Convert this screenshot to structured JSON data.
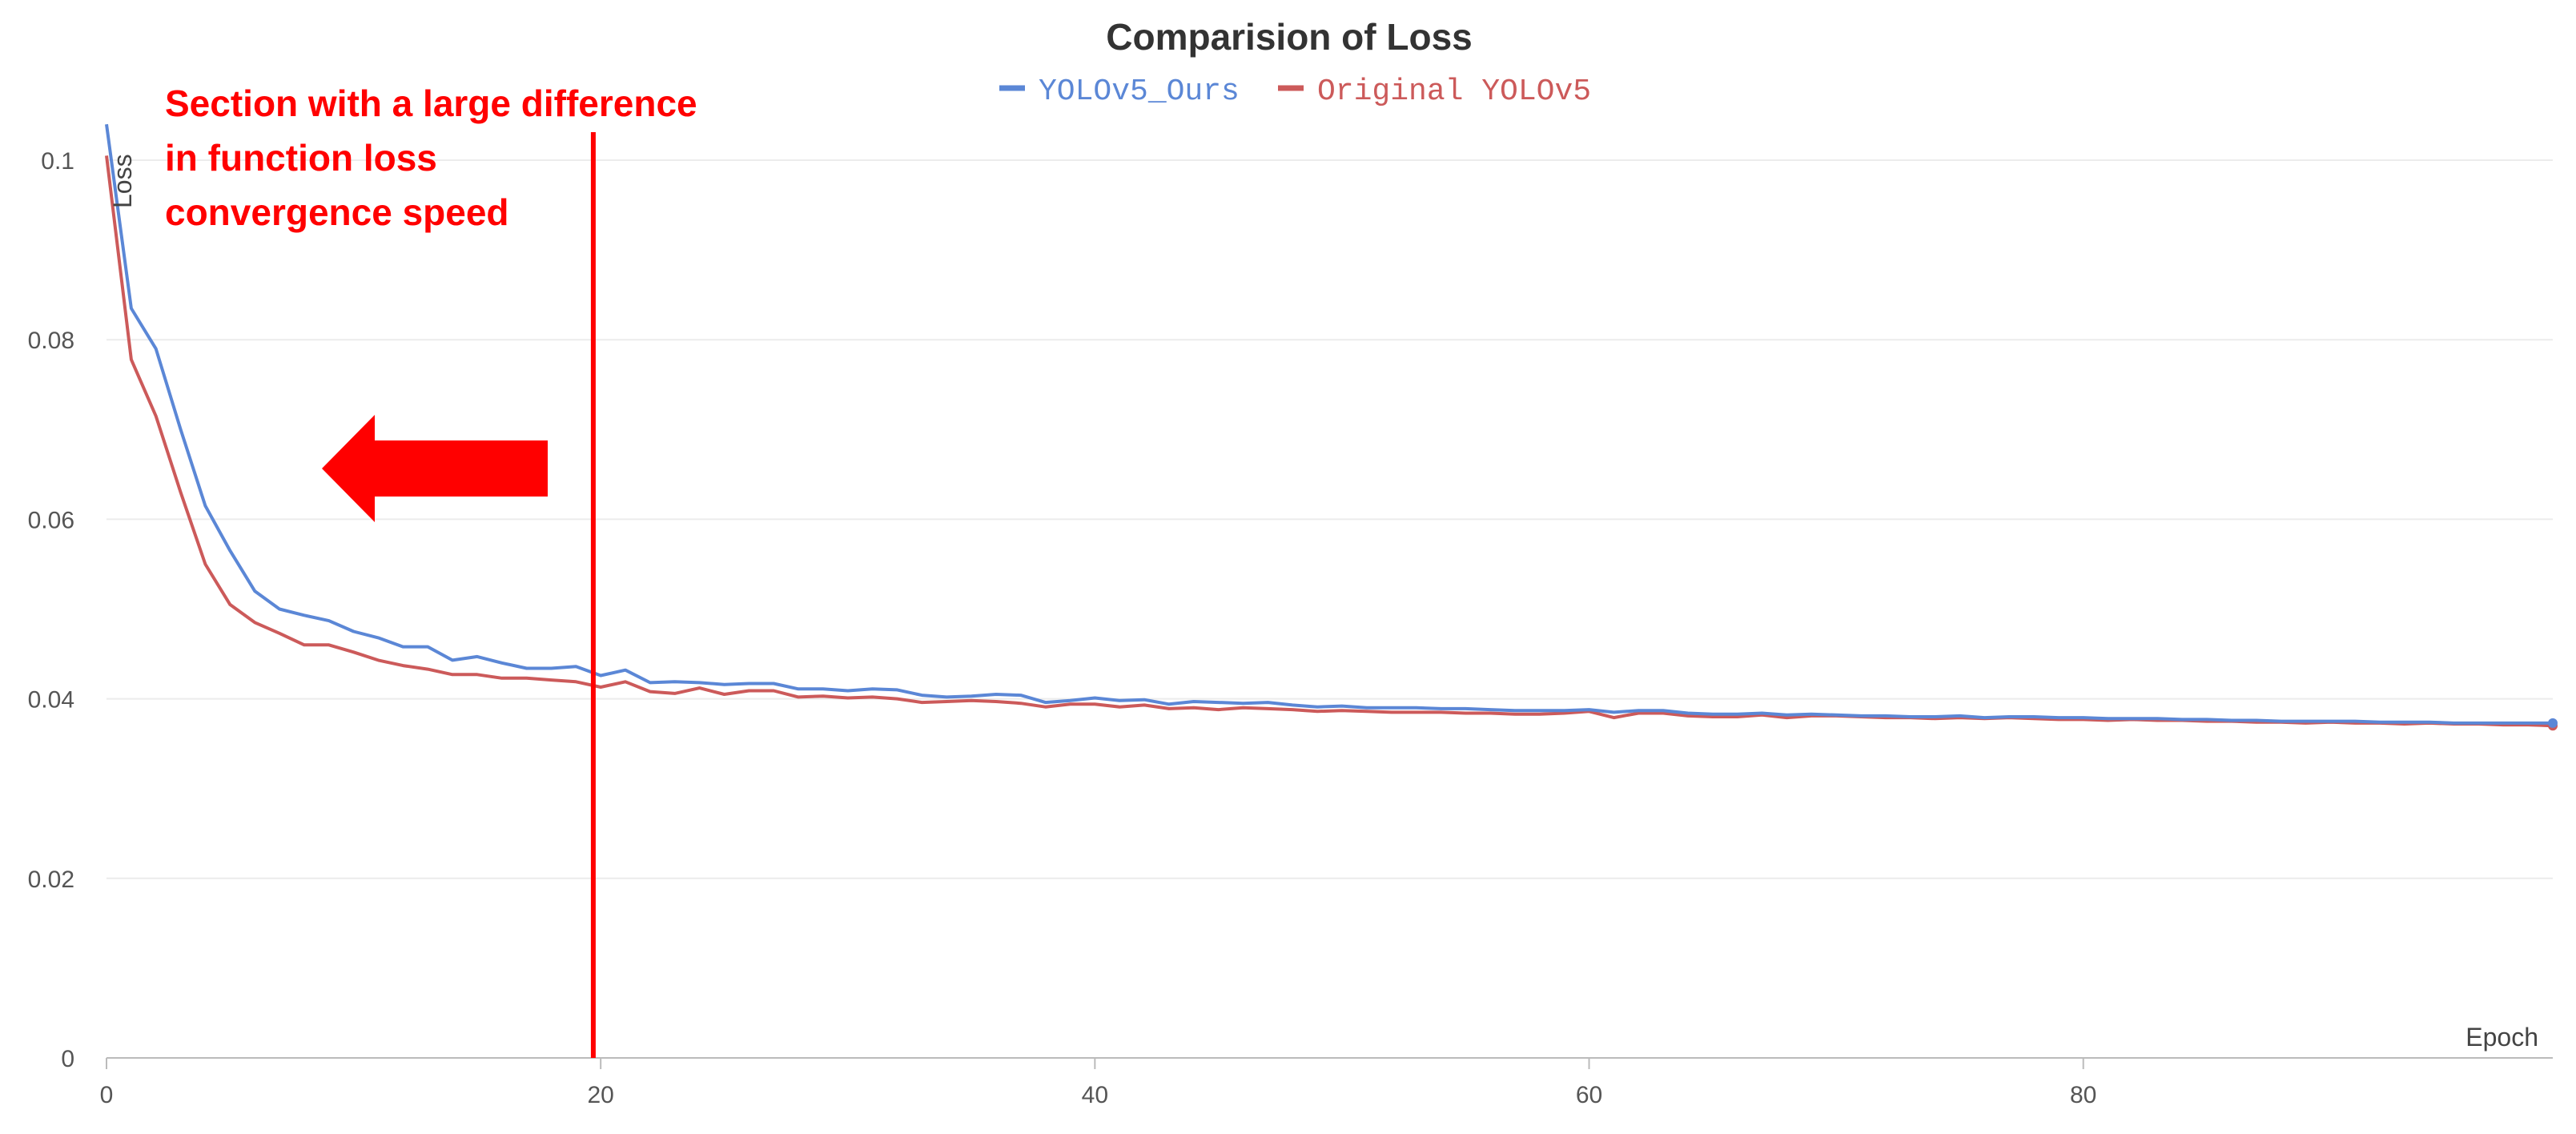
{
  "chart_data": {
    "type": "line",
    "title": "Comparision of Loss",
    "xlabel": "Epoch",
    "ylabel": "Loss",
    "xlim": [
      0,
      99
    ],
    "ylim": [
      0,
      0.1
    ],
    "x_ticks": [
      0,
      20,
      40,
      60,
      80
    ],
    "y_ticks": [
      0,
      0.02,
      0.04,
      0.06,
      0.08,
      0.1
    ],
    "y_tick_labels": [
      "0",
      "0.02",
      "0.04",
      "0.06",
      "0.08",
      "0.1"
    ],
    "grid": "horizontal",
    "legend_position": "top-center",
    "series": [
      {
        "name": "YOLOv5_Ours",
        "color": "#5b87d6",
        "x": [
          0,
          1,
          2,
          3,
          4,
          5,
          6,
          7,
          8,
          9,
          10,
          11,
          12,
          13,
          14,
          15,
          16,
          17,
          18,
          19,
          20,
          21,
          22,
          23,
          24,
          25,
          26,
          27,
          28,
          29,
          30,
          31,
          32,
          33,
          34,
          35,
          36,
          37,
          38,
          39,
          40,
          41,
          42,
          43,
          44,
          45,
          46,
          47,
          48,
          49,
          50,
          51,
          52,
          53,
          54,
          55,
          56,
          57,
          58,
          59,
          60,
          61,
          62,
          63,
          64,
          65,
          66,
          67,
          68,
          69,
          70,
          71,
          72,
          73,
          74,
          75,
          76,
          77,
          78,
          79,
          80,
          81,
          82,
          83,
          84,
          85,
          86,
          87,
          88,
          89,
          90,
          91,
          92,
          93,
          94,
          95,
          96,
          97,
          98,
          99
        ],
        "values": [
          0.104,
          0.0835,
          0.079,
          0.07,
          0.0615,
          0.0565,
          0.052,
          0.05,
          0.0493,
          0.0487,
          0.0475,
          0.0468,
          0.0458,
          0.0458,
          0.0443,
          0.0447,
          0.044,
          0.0434,
          0.0434,
          0.0436,
          0.0426,
          0.0432,
          0.0418,
          0.0419,
          0.0418,
          0.0416,
          0.0417,
          0.0417,
          0.0411,
          0.0411,
          0.0409,
          0.0411,
          0.041,
          0.0404,
          0.0402,
          0.0403,
          0.0405,
          0.0404,
          0.0396,
          0.0398,
          0.0401,
          0.0398,
          0.0399,
          0.0394,
          0.0397,
          0.0396,
          0.0395,
          0.0396,
          0.0393,
          0.0391,
          0.0392,
          0.039,
          0.039,
          0.039,
          0.0389,
          0.0389,
          0.0388,
          0.0387,
          0.0387,
          0.0387,
          0.0388,
          0.0385,
          0.0387,
          0.0387,
          0.0384,
          0.0383,
          0.0383,
          0.0384,
          0.0382,
          0.0383,
          0.0382,
          0.0381,
          0.0381,
          0.038,
          0.038,
          0.0381,
          0.0379,
          0.038,
          0.038,
          0.0379,
          0.0379,
          0.0378,
          0.0378,
          0.0378,
          0.0377,
          0.0377,
          0.0376,
          0.0376,
          0.0375,
          0.0375,
          0.0375,
          0.0375,
          0.0374,
          0.0374,
          0.0374,
          0.0373,
          0.0373,
          0.0373,
          0.0373,
          0.0373
        ]
      },
      {
        "name": "Original YOLOv5",
        "color": "#cc5a5a",
        "x": [
          0,
          1,
          2,
          3,
          4,
          5,
          6,
          7,
          8,
          9,
          10,
          11,
          12,
          13,
          14,
          15,
          16,
          17,
          18,
          19,
          20,
          21,
          22,
          23,
          24,
          25,
          26,
          27,
          28,
          29,
          30,
          31,
          32,
          33,
          34,
          35,
          36,
          37,
          38,
          39,
          40,
          41,
          42,
          43,
          44,
          45,
          46,
          47,
          48,
          49,
          50,
          51,
          52,
          53,
          54,
          55,
          56,
          57,
          58,
          59,
          60,
          61,
          62,
          63,
          64,
          65,
          66,
          67,
          68,
          69,
          70,
          71,
          72,
          73,
          74,
          75,
          76,
          77,
          78,
          79,
          80,
          81,
          82,
          83,
          84,
          85,
          86,
          87,
          88,
          89,
          90,
          91,
          92,
          93,
          94,
          95,
          96,
          97,
          98,
          99
        ],
        "values": [
          0.1005,
          0.0778,
          0.0715,
          0.063,
          0.055,
          0.0505,
          0.0485,
          0.0473,
          0.046,
          0.046,
          0.0452,
          0.0443,
          0.0437,
          0.0433,
          0.0427,
          0.0427,
          0.0423,
          0.0423,
          0.0421,
          0.0419,
          0.0413,
          0.0419,
          0.0408,
          0.0406,
          0.0412,
          0.0405,
          0.0409,
          0.0409,
          0.0402,
          0.0403,
          0.0401,
          0.0402,
          0.04,
          0.0396,
          0.0397,
          0.0398,
          0.0397,
          0.0395,
          0.0391,
          0.0394,
          0.0394,
          0.0391,
          0.0393,
          0.0389,
          0.039,
          0.0388,
          0.039,
          0.0389,
          0.0388,
          0.0386,
          0.0387,
          0.0386,
          0.0385,
          0.0385,
          0.0385,
          0.0384,
          0.0384,
          0.0383,
          0.0383,
          0.0384,
          0.0386,
          0.0379,
          0.0384,
          0.0384,
          0.0381,
          0.038,
          0.038,
          0.0382,
          0.0379,
          0.0381,
          0.0381,
          0.038,
          0.0379,
          0.0379,
          0.0378,
          0.0379,
          0.0378,
          0.0379,
          0.0378,
          0.0377,
          0.0377,
          0.0376,
          0.0377,
          0.0376,
          0.0376,
          0.0375,
          0.0375,
          0.0374,
          0.0374,
          0.0373,
          0.0374,
          0.0373,
          0.0373,
          0.0372,
          0.0373,
          0.0372,
          0.0372,
          0.0371,
          0.0371,
          0.037
        ]
      }
    ],
    "annotations": {
      "vertical_line_x": 19.7,
      "vertical_line_color": "#ff0000",
      "text_lines": [
        "Section with a large difference",
        "in function loss",
        "convergence speed"
      ],
      "text_color": "#ff0000",
      "arrow_direction": "left",
      "arrow_color": "#ff0000"
    }
  }
}
